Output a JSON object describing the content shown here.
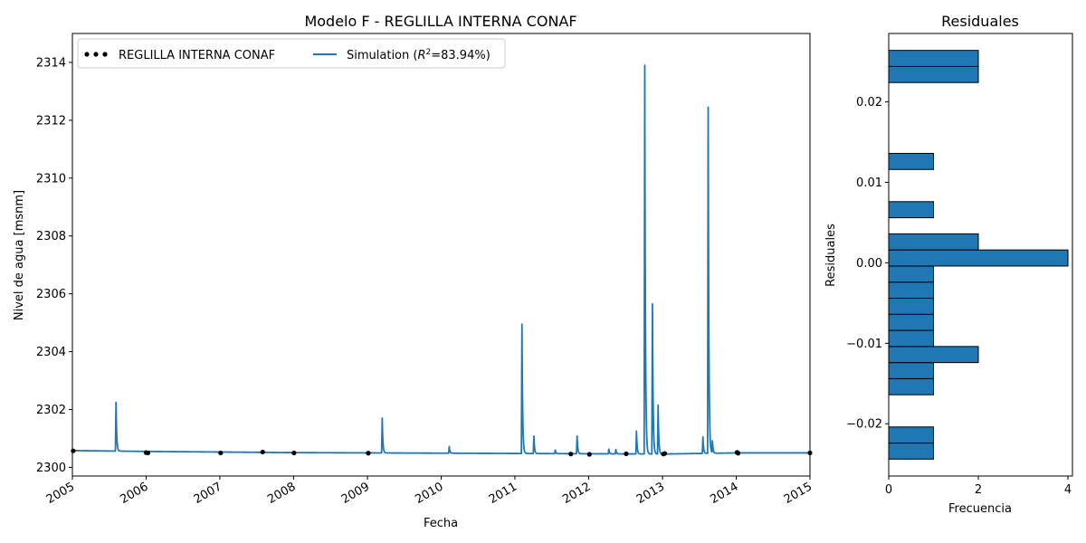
{
  "chart_data": [
    {
      "type": "line",
      "title": "Modelo F - REGLILLA INTERNA CONAF",
      "xlabel": "Fecha",
      "ylabel": "Nivel de agua [msnm]",
      "xlim": [
        "2005-01-01",
        "2015-01-01"
      ],
      "ylim": [
        2299.7,
        2315.0
      ],
      "x_ticks": [
        "2005",
        "2006",
        "2007",
        "2008",
        "2009",
        "2010",
        "2011",
        "2012",
        "2013",
        "2014",
        "2015"
      ],
      "y_ticks": [
        2300,
        2302,
        2304,
        2306,
        2308,
        2310,
        2312,
        2314
      ],
      "legend_position": "top-left",
      "series": [
        {
          "name": "REGLILLA INTERNA CONAF",
          "kind": "scatter",
          "color": "#000000",
          "points": [
            [
              "2005-01-05",
              2300.57
            ],
            [
              "2006-01-01",
              2300.51
            ],
            [
              "2006-01-10",
              2300.5
            ],
            [
              "2007-01-05",
              2300.5
            ],
            [
              "2007-08-01",
              2300.53
            ],
            [
              "2008-01-03",
              2300.5
            ],
            [
              "2009-01-05",
              2300.49
            ],
            [
              "2011-10-05",
              2300.46
            ],
            [
              "2012-01-05",
              2300.45
            ],
            [
              "2012-07-05",
              2300.47
            ],
            [
              "2013-01-05",
              2300.46
            ],
            [
              "2013-01-12",
              2300.48
            ],
            [
              "2014-01-05",
              2300.52
            ],
            [
              "2014-01-10",
              2300.49
            ],
            [
              "2015-01-01",
              2300.5
            ]
          ]
        },
        {
          "name": "Simulation ($R^2$=83.94%)",
          "label_prefix": "Simulation (",
          "label_suffix": "=83.94%)",
          "kind": "line",
          "color": "#1f77b4",
          "baseline": [
            [
              "2005-01-01",
              2300.58
            ],
            [
              "2006-01-01",
              2300.55
            ],
            [
              "2007-01-01",
              2300.53
            ],
            [
              "2008-01-01",
              2300.51
            ],
            [
              "2009-01-01",
              2300.5
            ],
            [
              "2010-01-01",
              2300.49
            ],
            [
              "2011-01-01",
              2300.48
            ],
            [
              "2012-01-01",
              2300.47
            ],
            [
              "2013-01-01",
              2300.46
            ],
            [
              "2014-01-01",
              2300.5
            ],
            [
              "2015-01-01",
              2300.5
            ]
          ],
          "peaks": [
            [
              "2005-08-05",
              2302.25
            ],
            [
              "2009-03-15",
              2301.7
            ],
            [
              "2010-02-10",
              2300.72
            ],
            [
              "2011-02-05",
              2304.95
            ],
            [
              "2011-04-05",
              2301.08
            ],
            [
              "2011-07-20",
              2300.6
            ],
            [
              "2011-11-05",
              2301.08
            ],
            [
              "2012-04-10",
              2300.63
            ],
            [
              "2012-05-15",
              2300.62
            ],
            [
              "2012-08-25",
              2301.25
            ],
            [
              "2012-10-05",
              2313.9
            ],
            [
              "2012-11-12",
              2305.65
            ],
            [
              "2012-12-10",
              2302.15
            ],
            [
              "2013-07-20",
              2301.05
            ],
            [
              "2013-08-15",
              2312.45
            ],
            [
              "2013-09-05",
              2300.92
            ]
          ]
        }
      ]
    },
    {
      "type": "bar",
      "orientation": "horizontal",
      "title": "Residuales",
      "xlabel": "Frecuencia",
      "ylabel": "Residuales",
      "color": "#1f77b4",
      "xlim": [
        0,
        4.1
      ],
      "ylim": [
        -0.0265,
        0.0285
      ],
      "x_ticks": [
        0,
        2,
        4
      ],
      "y_ticks": [
        "-0.02",
        "-0.01",
        "0.00",
        "0.01",
        "0.02"
      ],
      "y_tick_values": [
        -0.02,
        -0.01,
        0.0,
        0.01,
        0.02
      ],
      "bins": [
        {
          "low": -0.0244,
          "high": -0.0224,
          "count": 1
        },
        {
          "low": -0.0224,
          "high": -0.0204,
          "count": 1
        },
        {
          "low": -0.0164,
          "high": -0.0144,
          "count": 1
        },
        {
          "low": -0.0144,
          "high": -0.0124,
          "count": 1
        },
        {
          "low": -0.0124,
          "high": -0.0104,
          "count": 2
        },
        {
          "low": -0.0104,
          "high": -0.0084,
          "count": 1
        },
        {
          "low": -0.0084,
          "high": -0.0064,
          "count": 1
        },
        {
          "low": -0.0064,
          "high": -0.0044,
          "count": 1
        },
        {
          "low": -0.0044,
          "high": -0.0024,
          "count": 1
        },
        {
          "low": -0.0024,
          "high": -0.0004,
          "count": 1
        },
        {
          "low": -0.0004,
          "high": 0.0016,
          "count": 4
        },
        {
          "low": 0.0016,
          "high": 0.0036,
          "count": 2
        },
        {
          "low": 0.0056,
          "high": 0.0076,
          "count": 1
        },
        {
          "low": 0.0116,
          "high": 0.0136,
          "count": 1
        },
        {
          "low": 0.0224,
          "high": 0.0244,
          "count": 2
        },
        {
          "low": 0.0244,
          "high": 0.0264,
          "count": 2
        }
      ]
    }
  ]
}
